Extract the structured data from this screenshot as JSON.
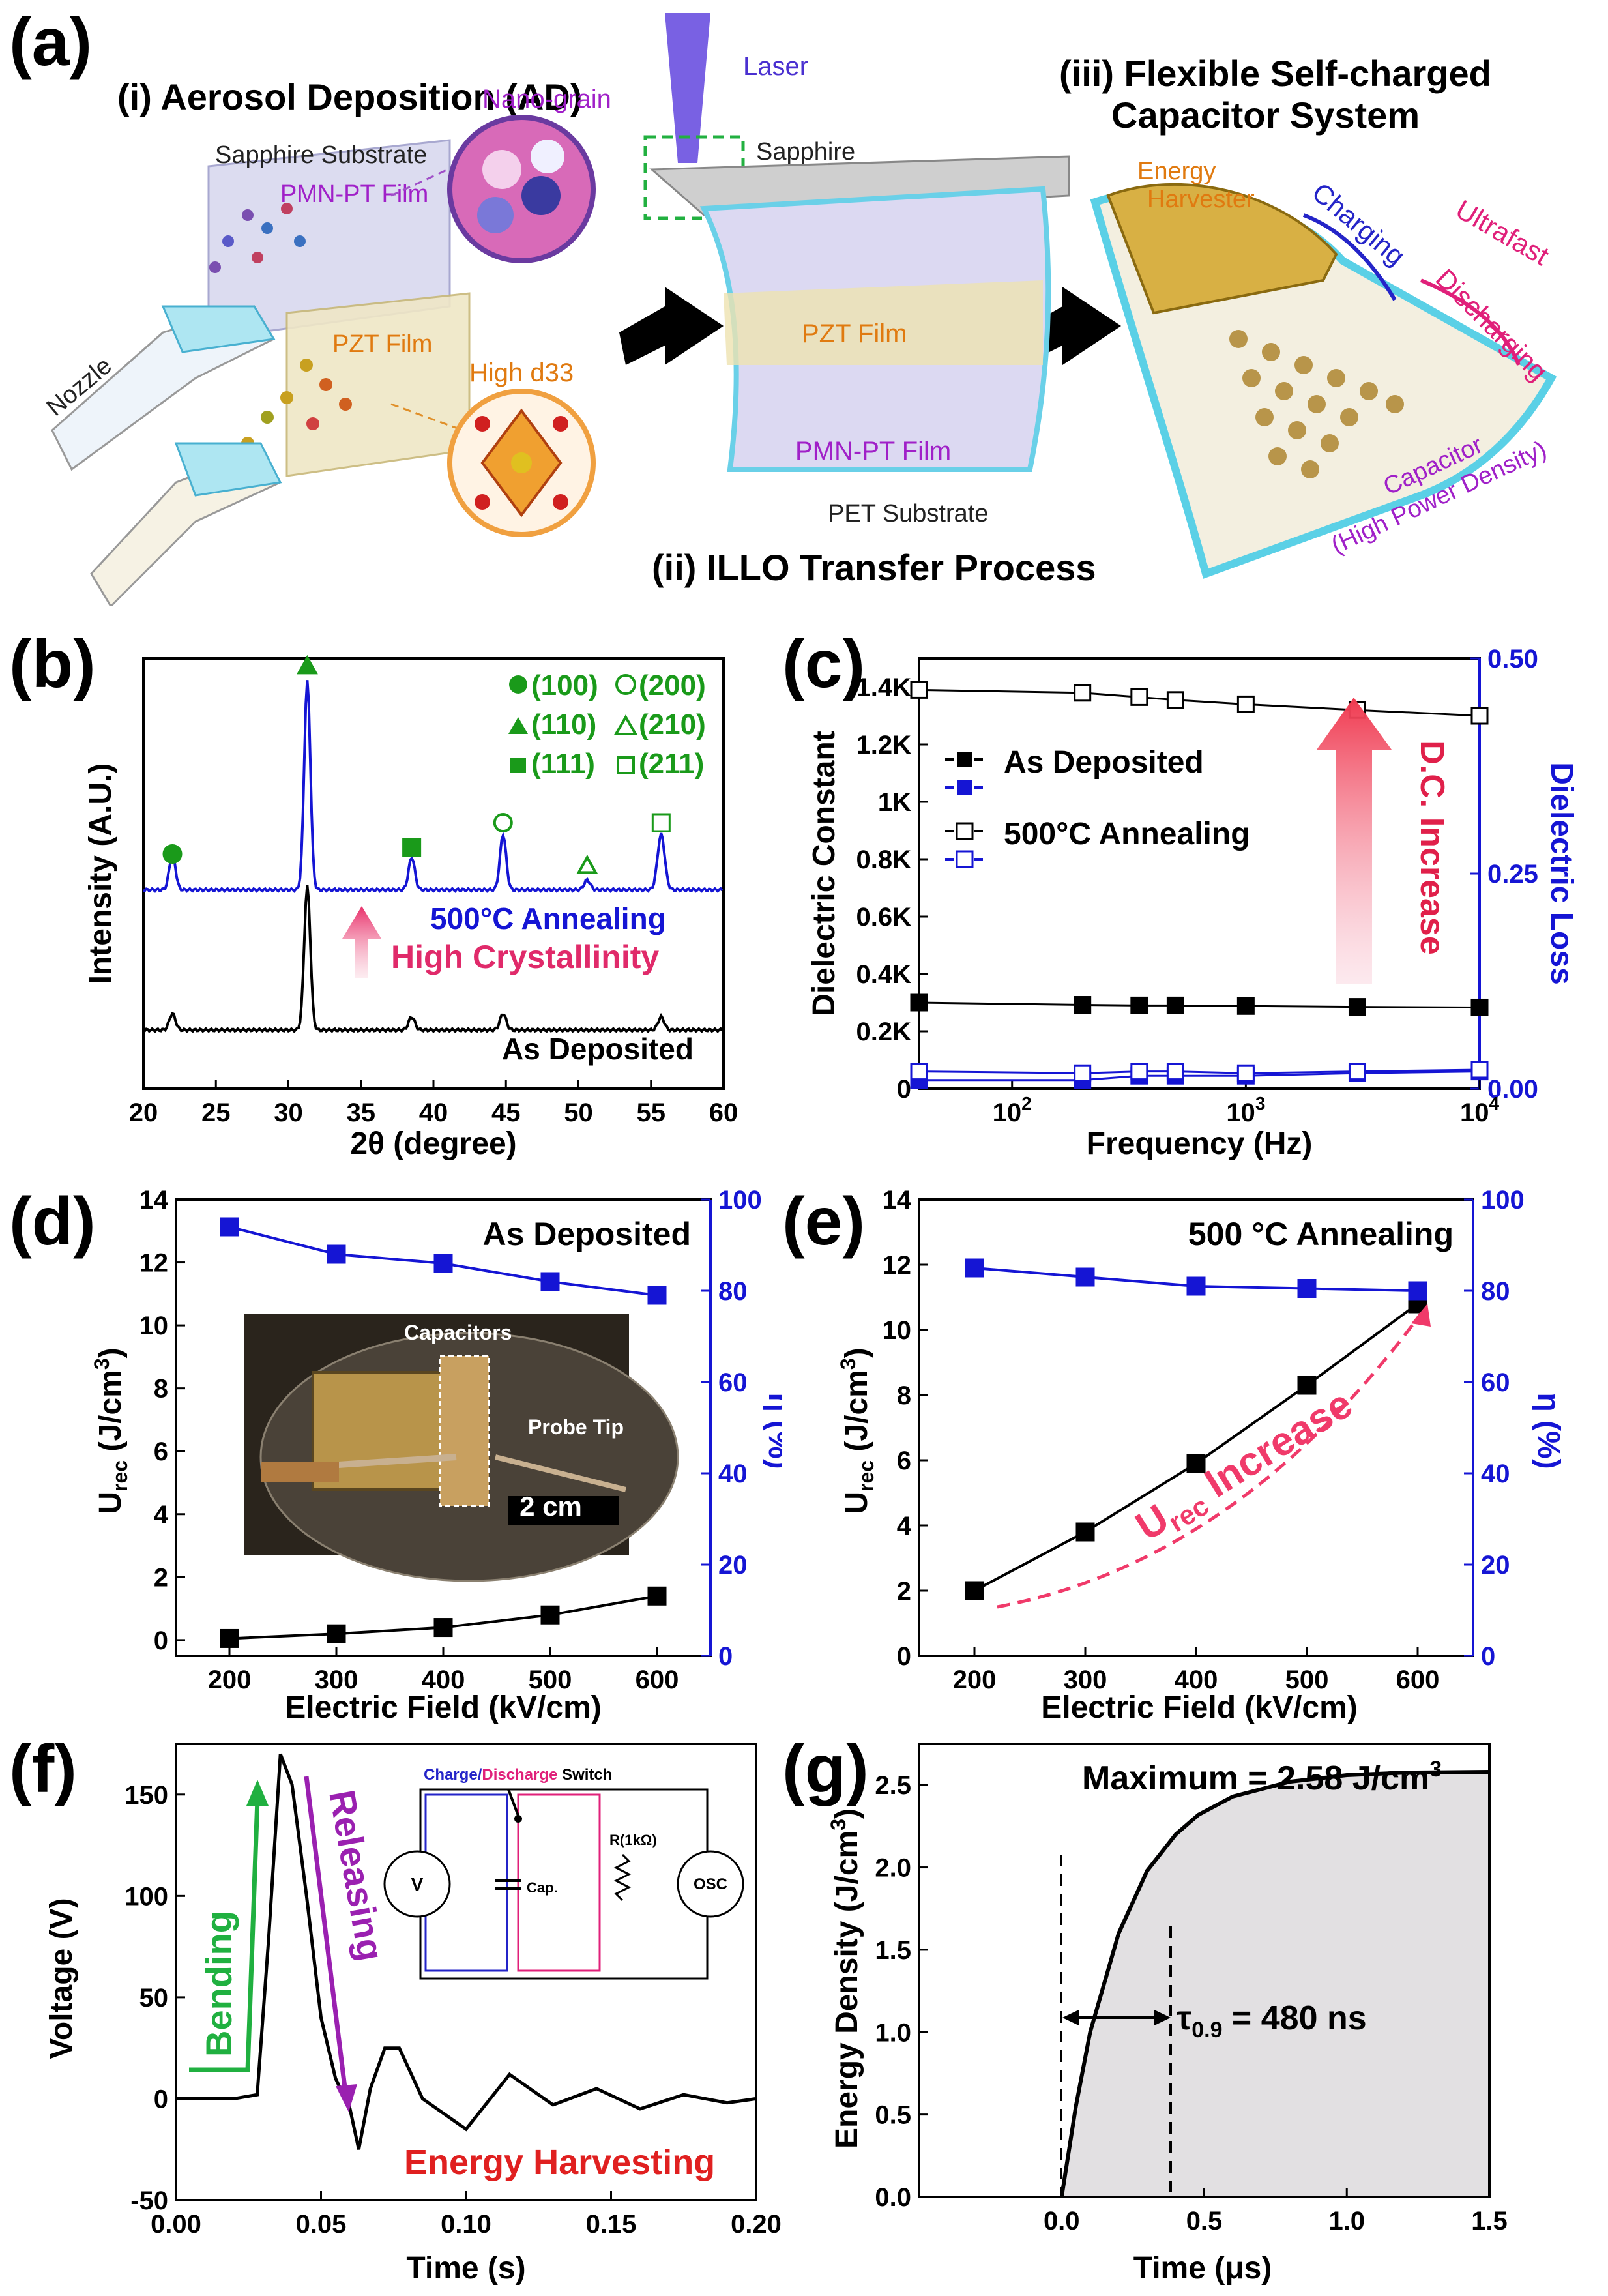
{
  "panel_a": {
    "label": "(a)",
    "section_i": "(i) Aerosol Deposition (AD)",
    "section_ii": "(ii) ILLO Transfer Process",
    "section_iii_line1": "(iii) Flexible Self-charged",
    "section_iii_line2": "Capacitor System",
    "sapphire_substrate": "Sapphire Substrate",
    "pmnpt_film": "PMN-PT Film",
    "nano_grain": "Nano-grain",
    "pzt_film": "PZT Film",
    "high_d33": "High d33",
    "nozzle": "Nozzle",
    "laser": "Laser",
    "sapphire": "Sapphire",
    "pzt_film2": "PZT Film",
    "pmnpt_film2": "PMN-PT Film",
    "pet_substrate": "PET Substrate",
    "energy": "Energy",
    "harvester": "Harvester",
    "charging": "Charging",
    "ultrafast": "Ultrafast",
    "discharging": "Discharging",
    "capacitor": "Capacitor",
    "high_power": "(High Power Density)"
  },
  "panel_b": {
    "label": "(b)",
    "ylabel": "Intensity (A.U.)",
    "xlabel": "2θ (degree)",
    "legend": [
      "(100)",
      "(200)",
      "(110)",
      "(210)",
      "(111)",
      "(211)"
    ],
    "annealing": "500°C Annealing",
    "high_cryst": "High Crystallinity",
    "as_dep": "As Deposited",
    "xticks": [
      "20",
      "25",
      "30",
      "35",
      "40",
      "45",
      "50",
      "55",
      "60"
    ]
  },
  "panel_c": {
    "label": "(c)",
    "ylabel": "Dielectric Constant",
    "ylabel_right": "Dielectric Loss",
    "xlabel": "Frequency (Hz)",
    "yticks": [
      "0",
      "0.2K",
      "0.4K",
      "0.6K",
      "0.8K",
      "1K",
      "1.2K",
      "1.4K"
    ],
    "yticks_right": [
      "0.00",
      "0.25",
      "0.50"
    ],
    "xticks": [
      "10",
      "10",
      "10"
    ],
    "xtick_exps": [
      "2",
      "3",
      "4"
    ],
    "legend1": "As Deposited",
    "legend2": "500°C Annealing",
    "dc_increase": "D.C. Increase"
  },
  "panel_d": {
    "label": "(d)",
    "title": "As Deposited",
    "ylabel": "U",
    "ylabel_sub": "rec",
    "ylabel_unit": " (J/cm",
    "ylabel_sup": "3",
    "ylabel_end": ")",
    "ylabel_right": "η (%)",
    "xlabel": "Electric Field (kV/cm)",
    "capacitors": "Capacitors",
    "probe_tip": "Probe Tip",
    "scale": "2 cm"
  },
  "panel_e": {
    "label": "(e)",
    "title": "500 °C Annealing",
    "ylabel_right": "η (%)",
    "xlabel": "Electric Field (kV/cm)",
    "urec_increase_1": "U",
    "urec_increase_sub": "rec",
    "urec_increase_2": " Increase"
  },
  "panel_f": {
    "label": "(f)",
    "ylabel": "Voltage (V)",
    "xlabel": "Time (s)",
    "bending": "Bending",
    "releasing": "Releasing",
    "energy_harvesting": "Energy Harvesting",
    "switch_charge": "Charge/",
    "switch_discharge": "Discharge",
    "switch": " Switch",
    "v": "V",
    "cap": "Cap.",
    "r": "R(1kΩ)",
    "osc": "OSC"
  },
  "panel_g": {
    "label": "(g)",
    "ylabel": "Energy Density (J/cm",
    "ylabel_sup": "3",
    "ylabel_end": ")",
    "xlabel": "Time (μs)",
    "maximum": "Maximum = 2.58 J/cm",
    "maximum_sup": "3",
    "tau": "τ",
    "tau_sub": "0.9",
    "tau_val": " = 480 ns"
  },
  "chart_data": [
    {
      "id": "b",
      "type": "line",
      "title": "",
      "xlabel": "2θ (degree)",
      "ylabel": "Intensity (A.U.)",
      "xlim": [
        20,
        60
      ],
      "series": [
        {
          "name": "500°C Annealing",
          "color": "#1515d4",
          "peaks_2theta": [
            22.0,
            31.3,
            38.5,
            44.8,
            50.6,
            55.7
          ],
          "peak_labels": [
            "(100)",
            "(110)",
            "(111)",
            "(200)",
            "(210)",
            "(211)"
          ]
        },
        {
          "name": "As Deposited",
          "color": "#000000",
          "peaks_2theta": [
            22.0,
            31.3,
            38.5,
            44.8,
            55.7
          ]
        }
      ]
    },
    {
      "id": "c",
      "type": "scatter",
      "xscale": "log",
      "xlabel": "Frequency (Hz)",
      "ylabel": "Dielectric Constant",
      "y2label": "Dielectric Loss",
      "xlim": [
        40,
        10000
      ],
      "ylim": [
        0,
        1500
      ],
      "y2lim": [
        0,
        0.5
      ],
      "series": [
        {
          "name": "As Deposited (D.C.)",
          "x": [
            40,
            200,
            350,
            500,
            1000,
            3000,
            10000
          ],
          "y": [
            300,
            292,
            290,
            290,
            288,
            285,
            283
          ]
        },
        {
          "name": "500°C Annealing (D.C.)",
          "x": [
            40,
            200,
            350,
            500,
            1000,
            3000,
            10000
          ],
          "y": [
            1390,
            1380,
            1365,
            1355,
            1340,
            1320,
            1300
          ]
        },
        {
          "name": "As Deposited (Loss)",
          "x": [
            40,
            200,
            350,
            500,
            1000,
            3000,
            10000
          ],
          "y": [
            0.01,
            0.01,
            0.015,
            0.015,
            0.015,
            0.018,
            0.02
          ]
        },
        {
          "name": "500°C Annealing (Loss)",
          "x": [
            40,
            200,
            350,
            500,
            1000,
            3000,
            10000
          ],
          "y": [
            0.02,
            0.018,
            0.02,
            0.02,
            0.018,
            0.02,
            0.022
          ]
        }
      ]
    },
    {
      "id": "d",
      "type": "line",
      "title": "As Deposited",
      "xlabel": "Electric Field (kV/cm)",
      "ylabel": "Urec (J/cm3)",
      "y2label": "η (%)",
      "xlim": [
        150,
        650
      ],
      "ylim": [
        -0.5,
        14
      ],
      "y2lim": [
        0,
        100
      ],
      "x": [
        200,
        300,
        400,
        500,
        600
      ],
      "series": [
        {
          "name": "Urec",
          "axis": "left",
          "values": [
            0.05,
            0.2,
            0.4,
            0.8,
            1.4
          ]
        },
        {
          "name": "η",
          "axis": "right",
          "values": [
            94,
            88,
            86,
            82,
            79
          ]
        }
      ]
    },
    {
      "id": "e",
      "type": "line",
      "title": "500 °C Annealing",
      "xlabel": "Electric Field (kV/cm)",
      "ylabel": "Urec (J/cm3)",
      "y2label": "η (%)",
      "xlim": [
        150,
        650
      ],
      "ylim": [
        0,
        14
      ],
      "y2lim": [
        0,
        100
      ],
      "x": [
        200,
        300,
        400,
        500,
        600
      ],
      "series": [
        {
          "name": "Urec",
          "axis": "left",
          "values": [
            2.0,
            3.8,
            5.9,
            8.3,
            10.8
          ]
        },
        {
          "name": "η",
          "axis": "right",
          "values": [
            85,
            83,
            81,
            80.5,
            80
          ]
        }
      ]
    },
    {
      "id": "f",
      "type": "line",
      "xlabel": "Time (s)",
      "ylabel": "Voltage (V)",
      "xlim": [
        0,
        0.2
      ],
      "ylim": [
        -50,
        175
      ],
      "x": [
        0,
        0.02,
        0.028,
        0.032,
        0.036,
        0.04,
        0.045,
        0.05,
        0.055,
        0.06,
        0.063,
        0.067,
        0.072,
        0.077,
        0.085,
        0.1,
        0.115,
        0.13,
        0.145,
        0.16,
        0.175,
        0.19,
        0.2
      ],
      "values": [
        0,
        0,
        2,
        80,
        170,
        155,
        100,
        40,
        10,
        -5,
        -25,
        5,
        25,
        25,
        0,
        -15,
        12,
        -3,
        5,
        -5,
        2,
        -2,
        0
      ]
    },
    {
      "id": "g",
      "type": "area",
      "xlabel": "Time (μs)",
      "ylabel": "Energy Density (J/cm3)",
      "xlim": [
        -0.5,
        1.5
      ],
      "ylim": [
        0,
        2.75
      ],
      "x": [
        0,
        0.05,
        0.1,
        0.2,
        0.3,
        0.4,
        0.48,
        0.6,
        0.8,
        1.0,
        1.2,
        1.5
      ],
      "values": [
        0,
        0.55,
        1.0,
        1.6,
        1.98,
        2.2,
        2.32,
        2.43,
        2.52,
        2.56,
        2.575,
        2.58
      ],
      "annotations": [
        "Maximum = 2.58 J/cm3",
        "τ0.9 = 480 ns"
      ]
    }
  ]
}
